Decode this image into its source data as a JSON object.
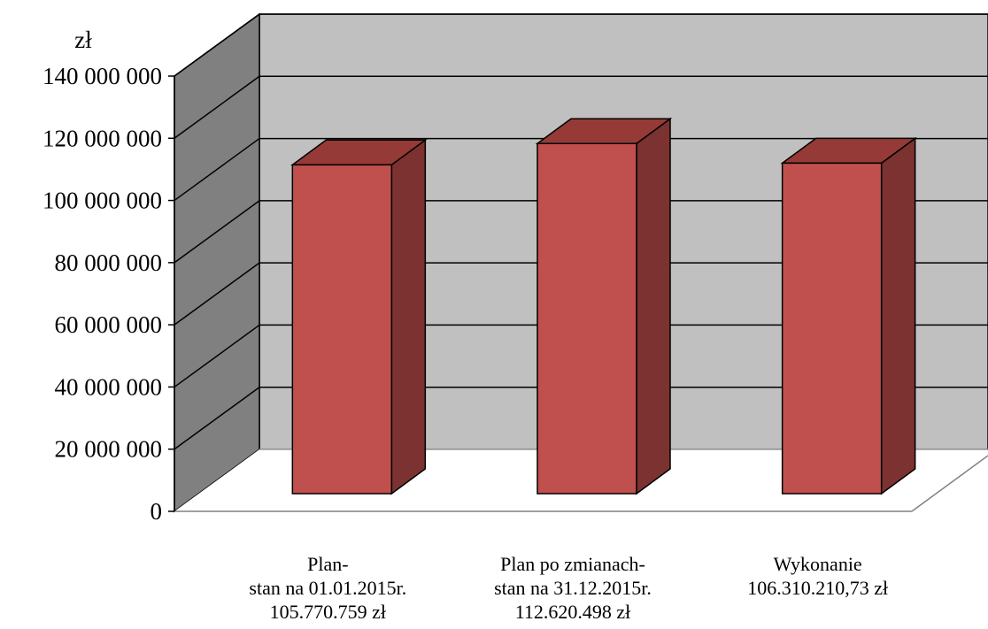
{
  "chart_data": {
    "type": "bar",
    "title": "",
    "ylabel": "zł",
    "xlabel": "",
    "ylim": [
      0,
      140000000
    ],
    "ytick_step": 20000000,
    "yticks": [
      {
        "value": 0,
        "label": "0"
      },
      {
        "value": 20000000,
        "label": "20 000 000"
      },
      {
        "value": 40000000,
        "label": "40 000 000"
      },
      {
        "value": 60000000,
        "label": "60 000 000"
      },
      {
        "value": 80000000,
        "label": "80 000 000"
      },
      {
        "value": 100000000,
        "label": "100 000 000"
      },
      {
        "value": 120000000,
        "label": "120 000 000"
      },
      {
        "value": 140000000,
        "label": "140 000 000"
      }
    ],
    "categories": [
      {
        "lines": [
          "Plan-",
          "stan na 01.01.2015r.",
          "105.770.759 zł"
        ]
      },
      {
        "lines": [
          "Plan po zmianach-",
          "stan na 31.12.2015r.",
          "112.620.498 zł"
        ]
      },
      {
        "lines": [
          "Wykonanie",
          "106.310.210,73 zł"
        ]
      }
    ],
    "values": [
      105770759,
      112620498,
      106310210.73
    ],
    "grid": true,
    "legend": "none",
    "style": "3d-column",
    "colors": {
      "bar_front": "#C0504D",
      "bar_top": "#963A37",
      "bar_side": "#7B3230",
      "back_wall": "#C0C0C0",
      "side_wall": "#808080",
      "floor": "#FFFFFF",
      "grid": "#000000"
    }
  }
}
